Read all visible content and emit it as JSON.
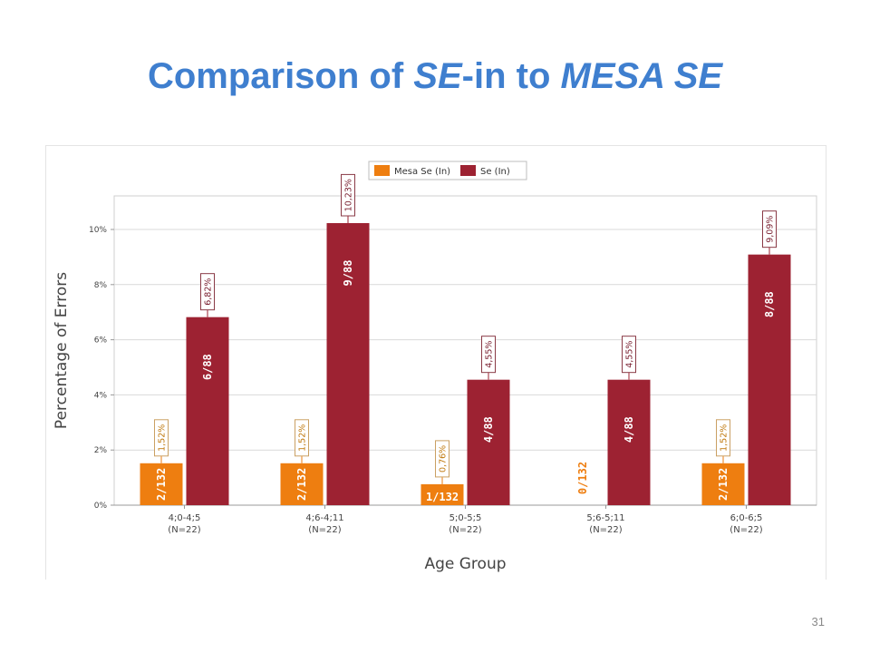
{
  "slide": {
    "title_parts": [
      "Comparison of ",
      "SE",
      "-in to ",
      "MESA SE"
    ],
    "page_number": "31"
  },
  "colors": {
    "mesa": "#ee7e10",
    "se": "#9d2232",
    "title": "#3f7fcf",
    "grid": "#d9d9d9"
  },
  "chart_data": {
    "type": "bar",
    "xlabel": "Age Group",
    "ylabel": "Percentage of Errors",
    "ylim": [
      0,
      11
    ],
    "yticks": [
      "0%",
      "2%",
      "4%",
      "6%",
      "8%",
      "10%"
    ],
    "grid": true,
    "legend_position": "top-center",
    "categories": [
      [
        "4;0-4;5",
        "(N=22)"
      ],
      [
        "4;6-4;11",
        "(N=22)"
      ],
      [
        "5;0-5;5",
        "(N=22)"
      ],
      [
        "5;6-5;11",
        "(N=22)"
      ],
      [
        "6;0-6;5",
        "(N=22)"
      ]
    ],
    "series": [
      {
        "name": "Mesa Se (In)",
        "values": [
          1.52,
          1.52,
          0.76,
          0,
          1.52
        ],
        "value_labels": [
          "1,52%",
          "1,52%",
          "0,76%",
          "",
          "1,52%"
        ],
        "count_labels": [
          "2/132",
          "2/132",
          "1/132",
          "0/132",
          "2/132"
        ]
      },
      {
        "name": "Se (In)",
        "values": [
          6.82,
          10.23,
          4.55,
          4.55,
          9.09
        ],
        "value_labels": [
          "6,82%",
          "10,23%",
          "4,55%",
          "4,55%",
          "9,09%"
        ],
        "count_labels": [
          "6/88",
          "9/88",
          "4/88",
          "4/88",
          "8/88"
        ]
      }
    ]
  }
}
